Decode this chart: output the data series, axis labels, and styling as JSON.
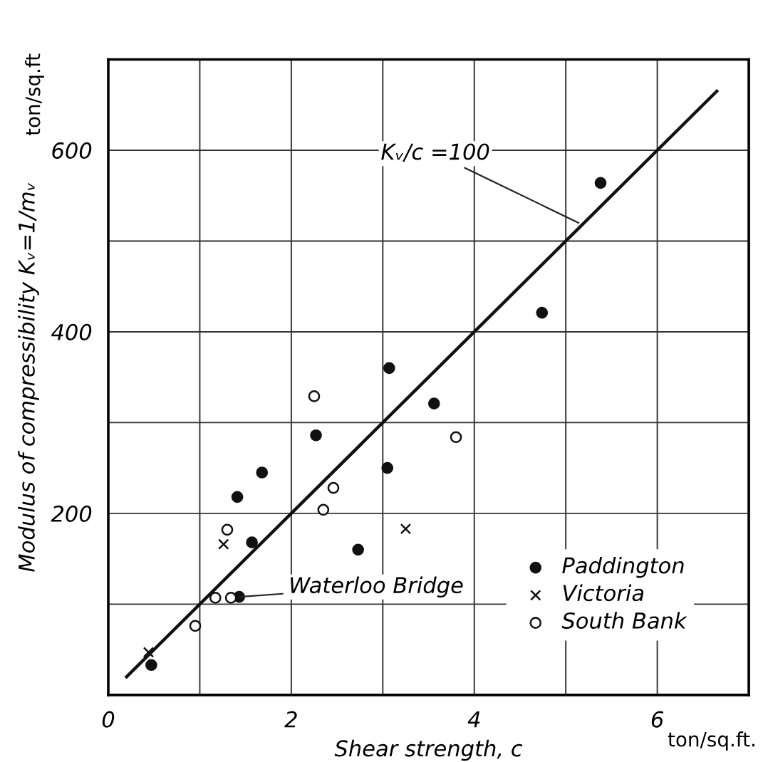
{
  "chart_data": {
    "type": "scatter",
    "xlabel": "Shear strength, c",
    "ylabel": "Modulus of compressibility Kᵥ=1/mᵥ",
    "xlim": [
      0,
      7
    ],
    "ylim": [
      0,
      700
    ],
    "xticks": [
      0,
      {
        "value": 1,
        "label": null
      },
      2,
      {
        "value": 3,
        "label": null
      },
      4,
      {
        "value": 5,
        "label": null
      },
      6
    ],
    "yticks": [
      {
        "value": 100,
        "label": null
      },
      200,
      {
        "value": 300,
        "label": null
      },
      400,
      {
        "value": 500,
        "label": null
      },
      600
    ],
    "grid": true,
    "legend": "bottom right",
    "series": [
      {
        "name": "Paddington",
        "color": "#111111",
        "marker": "circle",
        "x": [
          3.07,
          3.56,
          2.27,
          3.05,
          1.68,
          1.41,
          1.57,
          2.73,
          1.43,
          0.47,
          5.38,
          4.74
        ],
        "values": [
          360,
          321,
          286,
          250,
          245,
          218,
          168,
          160,
          108,
          33,
          564,
          421
        ]
      },
      {
        "name": "Victoria",
        "color": "#111111",
        "marker": "cross",
        "x": [
          1.26,
          3.25,
          0.44
        ],
        "values": [
          166,
          183,
          47
        ]
      },
      {
        "name": "South Bank",
        "color": "#111111",
        "marker": "open circle",
        "x": [
          2.25,
          3.8,
          2.46,
          2.35,
          1.3,
          1.17,
          1.34,
          0.95
        ],
        "values": [
          329,
          284,
          228,
          204,
          182,
          107,
          107,
          76
        ]
      },
      {
        "type": "line",
        "color": "#111111",
        "x": [
          0.2,
          6.65
        ],
        "values": [
          20,
          665
        ]
      }
    ],
    "annotations": [
      {
        "text": "Kᵥ/c =100",
        "x": 5.14,
        "y": 520
      },
      {
        "text": "Waterloo Bridge",
        "x": 1.43,
        "y": 108
      },
      "ton/sq.ft",
      "ton/sq.ft."
    ]
  }
}
